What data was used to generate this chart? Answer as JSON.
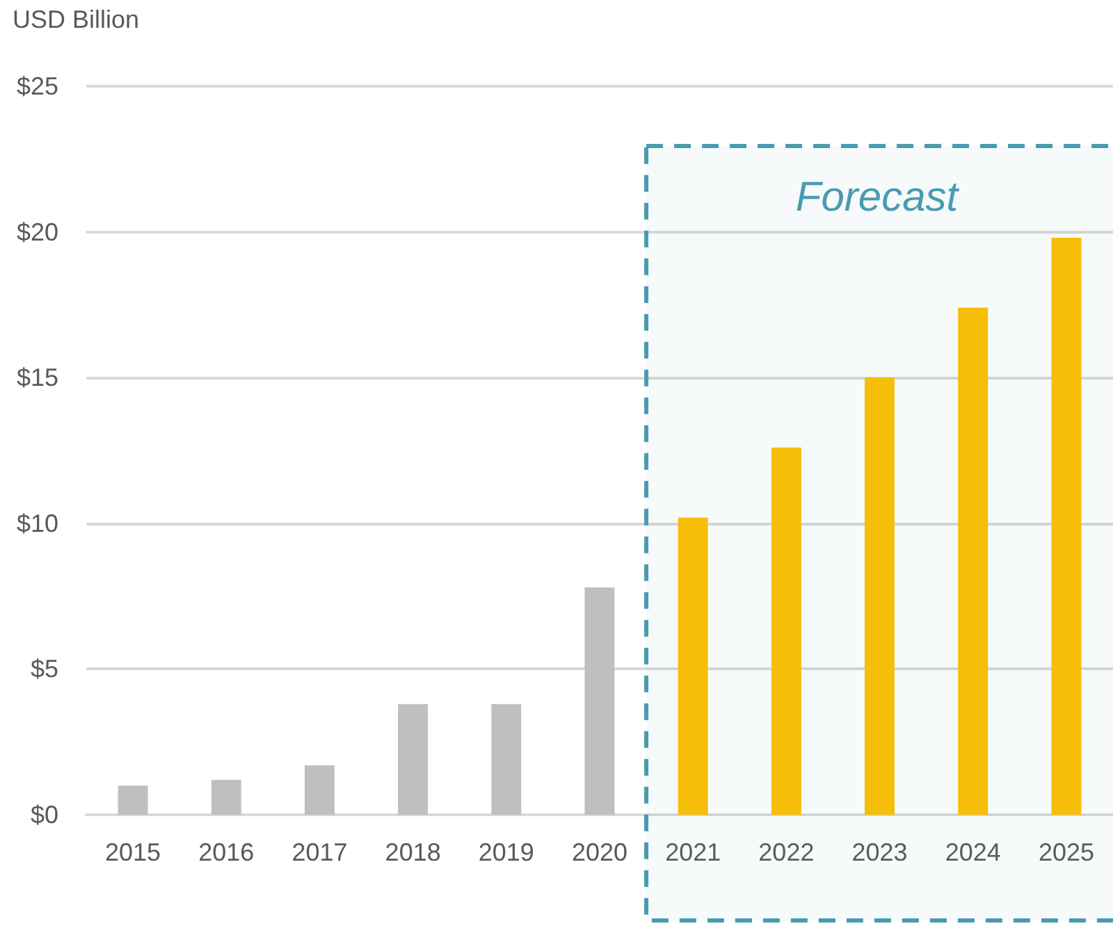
{
  "chart_data": {
    "type": "bar",
    "ylabel": "USD Billion",
    "categories": [
      "2015",
      "2016",
      "2017",
      "2018",
      "2019",
      "2020",
      "2021",
      "2022",
      "2023",
      "2024",
      "2025"
    ],
    "values": [
      1.0,
      1.2,
      1.7,
      3.8,
      3.8,
      7.8,
      10.2,
      12.6,
      15.0,
      17.4,
      19.8
    ],
    "colors": [
      "#bfbfbf",
      "#bfbfbf",
      "#bfbfbf",
      "#bfbfbf",
      "#bfbfbf",
      "#bfbfbf",
      "#ffc000",
      "#ffc000",
      "#ffc000",
      "#ffc000",
      "#ffc000"
    ],
    "ylim": [
      0,
      25
    ],
    "yticks": [
      {
        "value": 0,
        "label": "$0"
      },
      {
        "value": 5,
        "label": "$5"
      },
      {
        "value": 10,
        "label": "$10"
      },
      {
        "value": 15,
        "label": "$15"
      },
      {
        "value": 20,
        "label": "$20"
      },
      {
        "value": 25,
        "label": "$25"
      }
    ],
    "grid": "y",
    "bands": [
      {
        "axis": "x",
        "from": "2021",
        "to": "2025",
        "label": "Forecast",
        "color": "#4a9bb0"
      }
    ]
  }
}
